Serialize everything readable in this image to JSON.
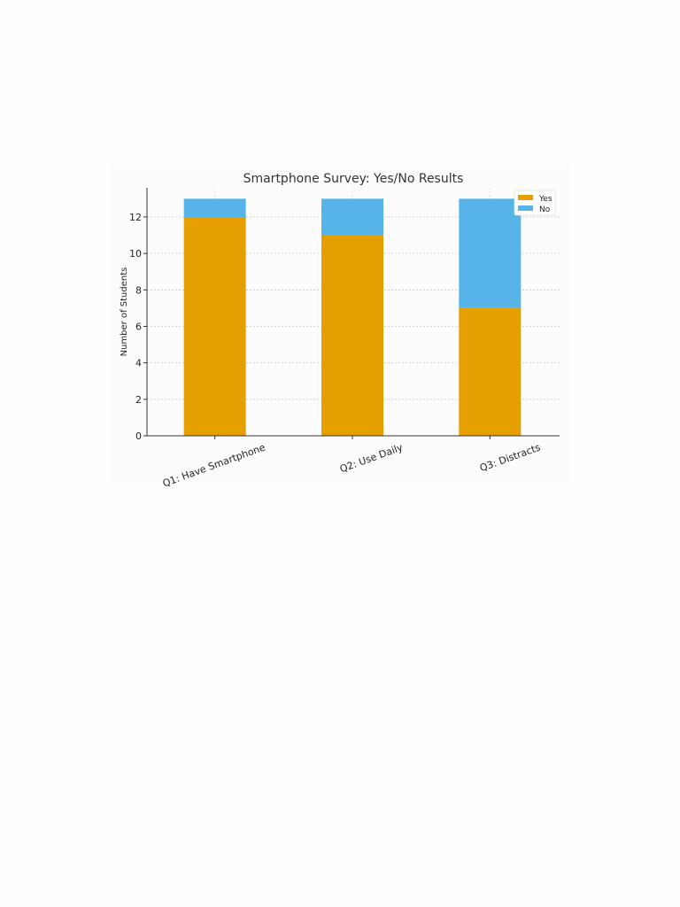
{
  "chart_data": {
    "type": "bar",
    "stacked": true,
    "title": "Smartphone Survey: Yes/No Results",
    "xlabel": "",
    "ylabel": "Number of Students",
    "categories": [
      "Q1: Have Smartphone",
      "Q2: Use Daily",
      "Q3: Distracts"
    ],
    "series": [
      {
        "name": "Yes",
        "values": [
          12,
          11,
          7
        ],
        "color": "#e69f00"
      },
      {
        "name": "No",
        "values": [
          1,
          2,
          6
        ],
        "color": "#56b4e9"
      }
    ],
    "ylim": [
      0,
      13.6
    ],
    "yticks": [
      0,
      2,
      4,
      6,
      8,
      10,
      12
    ],
    "grid": true,
    "legend": "top-right"
  }
}
